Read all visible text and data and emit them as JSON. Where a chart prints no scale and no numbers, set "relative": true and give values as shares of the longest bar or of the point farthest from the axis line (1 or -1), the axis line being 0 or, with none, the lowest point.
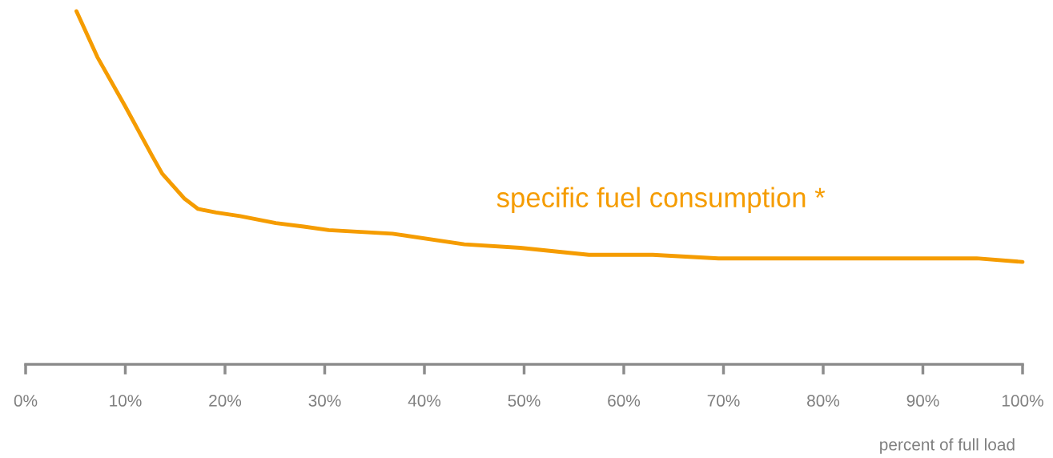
{
  "chart_data": {
    "type": "line",
    "relative": true,
    "xlabel": "percent of full load",
    "xlim": [
      0,
      100
    ],
    "xticks": [
      {
        "value": 0,
        "label": "0%"
      },
      {
        "value": 10,
        "label": "10%"
      },
      {
        "value": 20,
        "label": "20%"
      },
      {
        "value": 30,
        "label": "30%"
      },
      {
        "value": 40,
        "label": "40%"
      },
      {
        "value": 50,
        "label": "50%"
      },
      {
        "value": 60,
        "label": "60%"
      },
      {
        "value": 70,
        "label": "70%"
      },
      {
        "value": 80,
        "label": "80%"
      },
      {
        "value": 90,
        "label": "90%"
      },
      {
        "value": 100,
        "label": "100%"
      }
    ],
    "grid": false,
    "marker": "none",
    "line_style": "solid",
    "series": [
      {
        "name": "specific fuel consumption *",
        "color": "#f59c00",
        "x": [
          5.1,
          7.2,
          10.0,
          12.7,
          13.7,
          15.9,
          17.3,
          19.1,
          21.5,
          25.1,
          27.9,
          30.4,
          36.8,
          44.0,
          49.6,
          56.5,
          62.9,
          69.5,
          95.4,
          100
        ],
        "values": [
          1.0,
          0.87,
          0.73,
          0.59,
          0.54,
          0.47,
          0.44,
          0.43,
          0.42,
          0.4,
          0.39,
          0.38,
          0.37,
          0.34,
          0.33,
          0.31,
          0.31,
          0.3,
          0.3,
          0.29
        ]
      }
    ]
  }
}
